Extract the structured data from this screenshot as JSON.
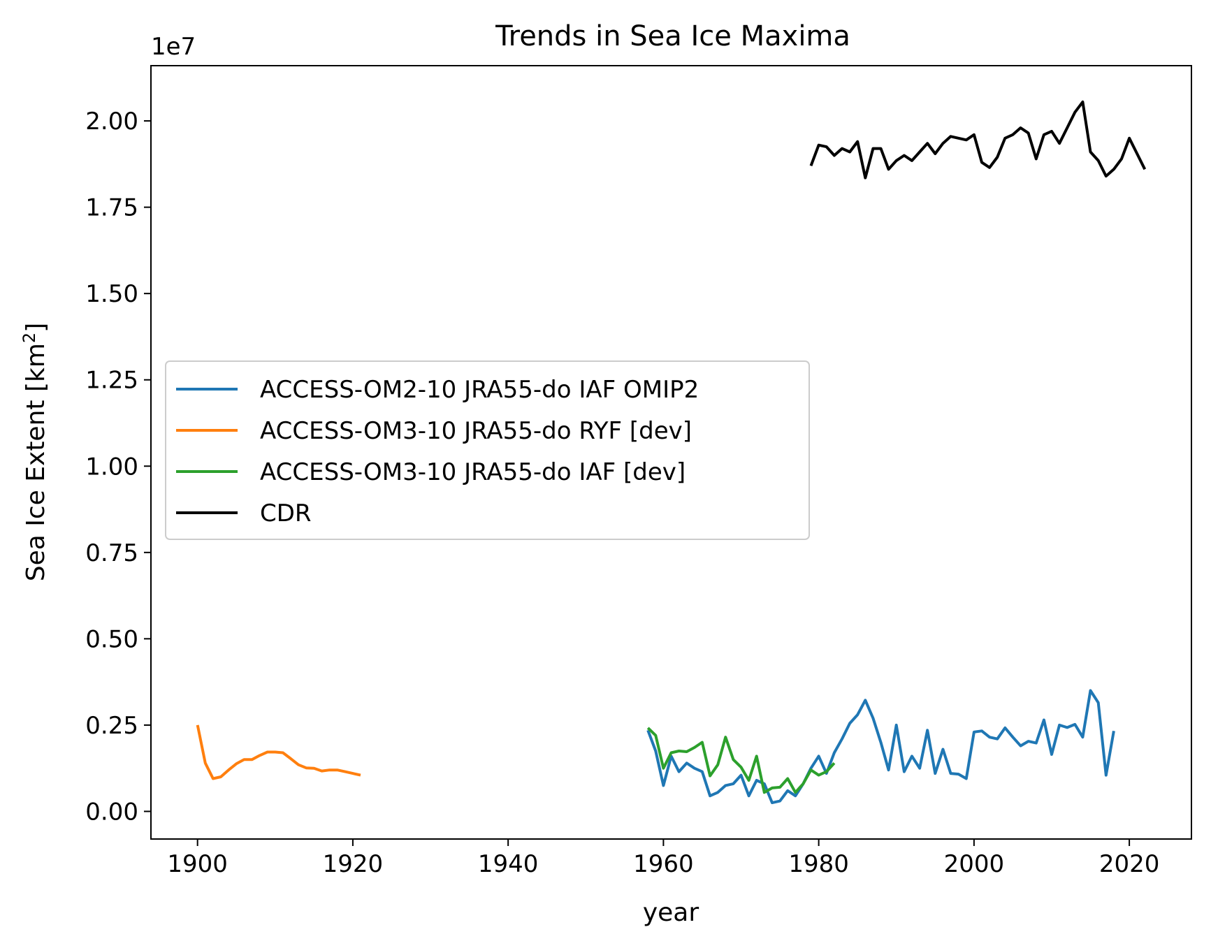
{
  "chart_data": {
    "type": "line",
    "title": "Trends in Sea Ice Maxima",
    "xlabel": "year",
    "ylabel": "Sea Ice Extent [km",
    "ylabel_sup": "2",
    "ylabel_close": "]",
    "y_offset_label": "1e7",
    "xlim": [
      1894,
      2028
    ],
    "ylim": [
      -800000,
      21600000
    ],
    "xticks": [
      1900,
      1920,
      1940,
      1960,
      1980,
      2000,
      2020
    ],
    "yticks": [
      0,
      2500000,
      5000000,
      7500000,
      10000000,
      12500000,
      15000000,
      17500000,
      20000000
    ],
    "ytick_labels": [
      "0.00",
      "0.25",
      "0.50",
      "0.75",
      "1.00",
      "1.25",
      "1.50",
      "1.75",
      "2.00"
    ],
    "grid": false,
    "legend_position": "center-left",
    "series": [
      {
        "name": "ACCESS-OM2-10 JRA55-do IAF OMIP2",
        "color": "#1f77b4",
        "x": [
          1958,
          1959,
          1960,
          1961,
          1962,
          1963,
          1964,
          1965,
          1966,
          1967,
          1968,
          1969,
          1970,
          1971,
          1972,
          1973,
          1974,
          1975,
          1976,
          1977,
          1978,
          1979,
          1980,
          1981,
          1982,
          1983,
          1984,
          1985,
          1986,
          1987,
          1988,
          1989,
          1990,
          1991,
          1992,
          1993,
          1994,
          1995,
          1996,
          1997,
          1998,
          1999,
          2000,
          2001,
          2002,
          2003,
          2004,
          2005,
          2006,
          2007,
          2008,
          2009,
          2010,
          2011,
          2012,
          2013,
          2014,
          2015,
          2016,
          2017,
          2018
        ],
        "y": [
          2350000,
          1750000,
          750000,
          1600000,
          1150000,
          1400000,
          1250000,
          1150000,
          450000,
          550000,
          750000,
          800000,
          1050000,
          450000,
          900000,
          800000,
          250000,
          300000,
          600000,
          450000,
          800000,
          1250000,
          1600000,
          1100000,
          1700000,
          2100000,
          2550000,
          2800000,
          3220000,
          2700000,
          2000000,
          1200000,
          2500000,
          1150000,
          1600000,
          1250000,
          2350000,
          1100000,
          1800000,
          1100000,
          1080000,
          950000,
          2300000,
          2330000,
          2150000,
          2100000,
          2420000,
          2150000,
          1900000,
          2030000,
          1980000,
          2650000,
          1650000,
          2500000,
          2430000,
          2520000,
          2150000,
          3500000,
          3150000,
          1050000,
          2330000
        ]
      },
      {
        "name": "ACCESS-OM3-10 JRA55-do RYF [dev]",
        "color": "#ff7f0e",
        "x": [
          1900,
          1901,
          1902,
          1903,
          1904,
          1905,
          1906,
          1907,
          1908,
          1909,
          1910,
          1911,
          1912,
          1913,
          1914,
          1915,
          1916,
          1917,
          1918,
          1919,
          1920,
          1921
        ],
        "y": [
          2500000,
          1400000,
          950000,
          1000000,
          1200000,
          1380000,
          1500000,
          1500000,
          1620000,
          1720000,
          1720000,
          1700000,
          1530000,
          1350000,
          1260000,
          1250000,
          1170000,
          1200000,
          1200000,
          1150000,
          1100000,
          1050000
        ]
      },
      {
        "name": "ACCESS-OM3-10 JRA55-do IAF [dev]",
        "color": "#2ca02c",
        "x": [
          1958,
          1959,
          1960,
          1961,
          1962,
          1963,
          1964,
          1965,
          1966,
          1967,
          1968,
          1969,
          1970,
          1971,
          1972,
          1973,
          1974,
          1975,
          1976,
          1977,
          1978,
          1979,
          1980,
          1981,
          1982
        ],
        "y": [
          2420000,
          2200000,
          1250000,
          1700000,
          1750000,
          1730000,
          1850000,
          2000000,
          1030000,
          1350000,
          2150000,
          1500000,
          1280000,
          900000,
          1600000,
          550000,
          680000,
          700000,
          950000,
          550000,
          800000,
          1200000,
          1050000,
          1150000,
          1400000
        ]
      },
      {
        "name": "CDR",
        "color": "#000000",
        "x": [
          1979,
          1980,
          1981,
          1982,
          1983,
          1984,
          1985,
          1986,
          1987,
          1988,
          1989,
          1990,
          1991,
          1992,
          1993,
          1994,
          1995,
          1996,
          1997,
          1998,
          1999,
          2000,
          2001,
          2002,
          2003,
          2004,
          2005,
          2006,
          2007,
          2008,
          2009,
          2010,
          2011,
          2012,
          2013,
          2014,
          2015,
          2016,
          2017,
          2018,
          2019,
          2020,
          2021,
          2022
        ],
        "y": [
          18700000,
          19300000,
          19250000,
          19000000,
          19200000,
          19100000,
          19400000,
          18350000,
          19200000,
          19200000,
          18600000,
          18850000,
          19000000,
          18850000,
          19100000,
          19350000,
          19050000,
          19350000,
          19550000,
          19500000,
          19450000,
          19600000,
          18800000,
          18650000,
          18950000,
          19500000,
          19600000,
          19800000,
          19650000,
          18900000,
          19600000,
          19700000,
          19350000,
          19800000,
          20250000,
          20550000,
          19100000,
          18850000,
          18400000,
          18600000,
          18900000,
          19500000,
          19050000,
          18600000
        ]
      }
    ]
  }
}
